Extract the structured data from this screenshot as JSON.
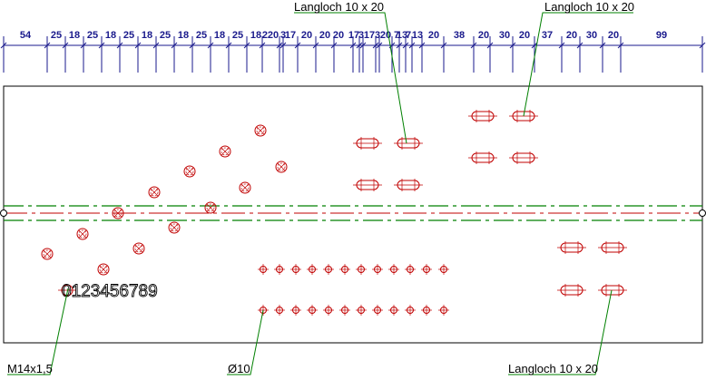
{
  "dimensions": [
    "54",
    "25",
    "18",
    "25",
    "18",
    "25",
    "18",
    "25",
    "18",
    "25",
    "18",
    "25",
    "18",
    "220",
    "3",
    "17",
    "20",
    "20",
    "20",
    "17",
    "3",
    "17",
    "3",
    "20",
    "7",
    "13",
    "7",
    "13",
    "20",
    "38",
    "20",
    "30",
    "20",
    "37",
    "20",
    "30",
    "20",
    "99"
  ],
  "labels": {
    "slot_top_1": "Langloch 10 x 20",
    "slot_top_2": "Langloch 10 x 20",
    "slot_bottom": "Langloch 10 x 20",
    "thread": "M14x1,5",
    "hole": "Ø10",
    "engraving": "0123456789"
  },
  "colors": {
    "dimension": "#1a1a8c",
    "hole": "#c00000",
    "centerline": "#c00000",
    "axisline": "#008000",
    "leader": "#008000",
    "outline": "#000000"
  }
}
